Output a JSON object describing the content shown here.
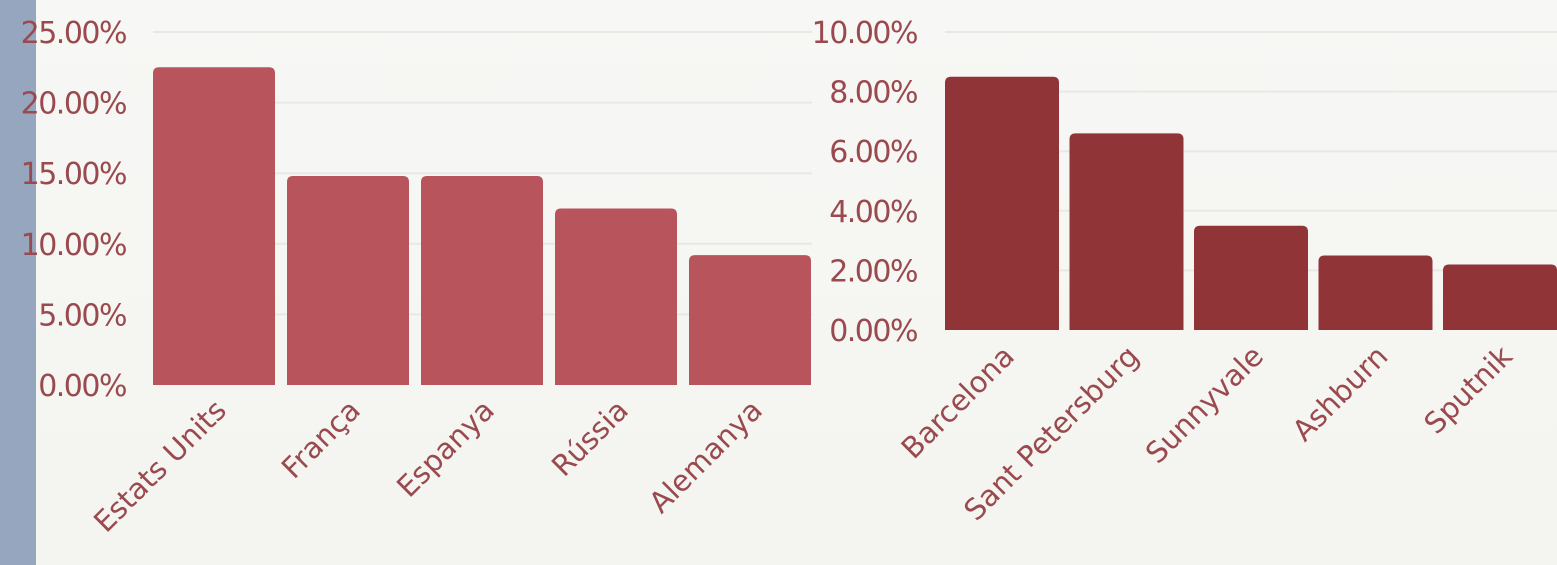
{
  "chart_data": [
    {
      "type": "bar",
      "categories": [
        "Estats Units",
        "França",
        "Espanya",
        "Rússia",
        "Alemanya"
      ],
      "values": [
        22.5,
        14.8,
        14.8,
        12.5,
        9.2
      ],
      "ylim": [
        0,
        25
      ],
      "yticks": [
        "0.00%",
        "5.00%",
        "10.00%",
        "15.00%",
        "20.00%",
        "25.00%"
      ],
      "bar_color": "#b8545c",
      "grid": true
    },
    {
      "type": "bar",
      "categories": [
        "Barcelona",
        "Sant Petersburg",
        "Sunnyvale",
        "Ashburn",
        "Sputnik"
      ],
      "values": [
        8.5,
        6.6,
        3.5,
        2.5,
        2.2
      ],
      "ylim": [
        0,
        10
      ],
      "yticks": [
        "0.00%",
        "2.00%",
        "4.00%",
        "6.00%",
        "8.00%",
        "10.00%"
      ],
      "bar_color": "#903438",
      "grid": true
    }
  ],
  "colors": {
    "text": "#9a4a4e",
    "grid": "#e8e8e4",
    "strip": "#96a6bf"
  }
}
